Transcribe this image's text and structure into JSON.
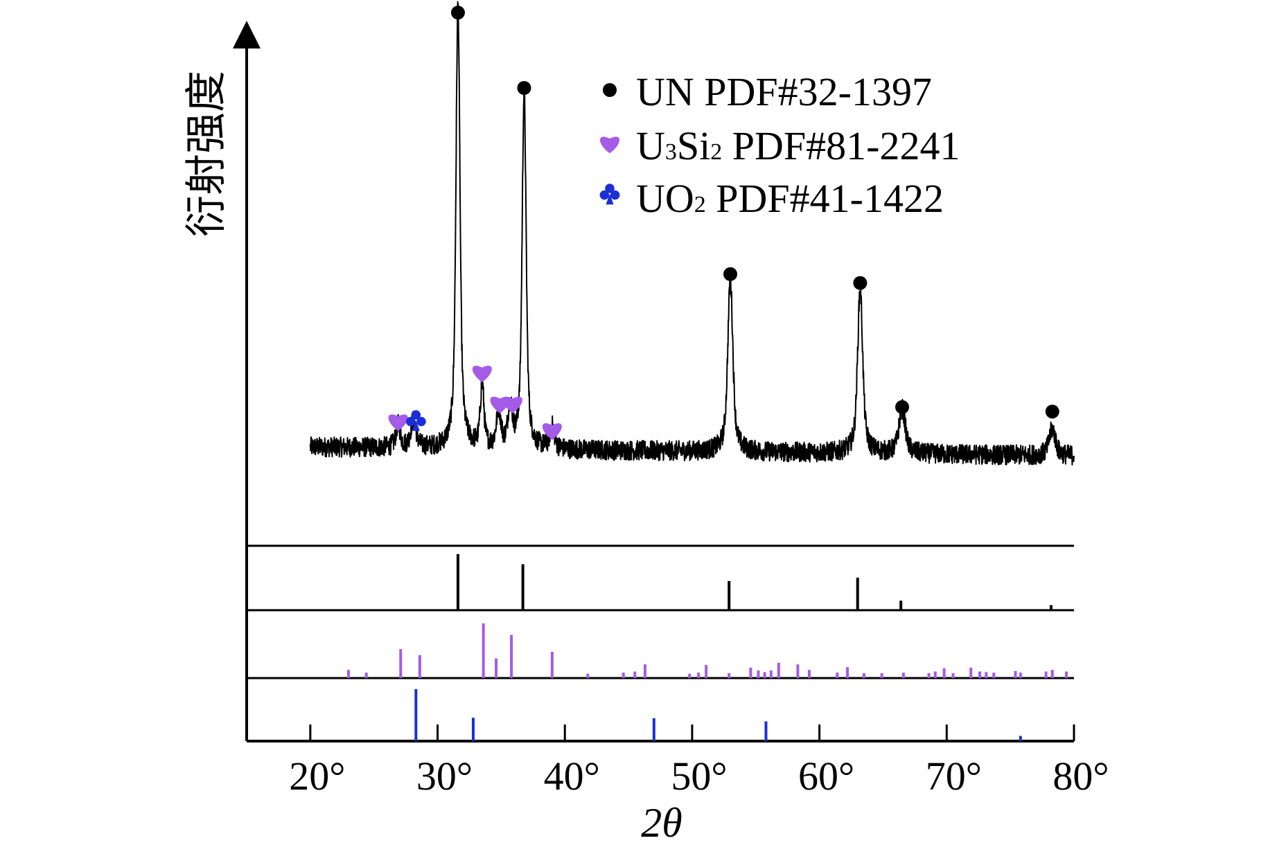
{
  "chart_data": {
    "type": "line",
    "xlabel": "2θ",
    "ylabel": "衍射强度",
    "xlim": [
      15,
      80
    ],
    "x_ticks": [
      20,
      30,
      40,
      50,
      60,
      70,
      80
    ],
    "x_tick_labels": [
      "20°",
      "30°",
      "40°",
      "50°",
      "60°",
      "70°",
      "80°"
    ],
    "grid": false,
    "legend_position": "top-right",
    "colors": {
      "pattern": "#000000",
      "UN": "#000000",
      "U3Si2": "#a45be8",
      "UO2": "#1a2fd6",
      "axis": "#000000"
    },
    "legend": [
      {
        "marker": "circle",
        "label_parts": [
          "UN PDF#32-1397"
        ],
        "color": "#000000"
      },
      {
        "marker": "heart",
        "label_parts": [
          "U",
          "3",
          "Si",
          "2",
          " PDF#81-2241"
        ],
        "color": "#a45be8"
      },
      {
        "marker": "club",
        "label_parts": [
          "UO",
          "2",
          " PDF#41-1422"
        ],
        "color": "#1a2fd6"
      }
    ],
    "measured_pattern": {
      "x_range": [
        20,
        80
      ],
      "baseline": 0.12,
      "noise": 0.045,
      "peaks": [
        {
          "x": 26.9,
          "h": 0.05,
          "w": 0.25
        },
        {
          "x": 28.1,
          "h": 0.06,
          "w": 0.3
        },
        {
          "x": 31.6,
          "h": 1.0,
          "w": 0.22
        },
        {
          "x": 33.5,
          "h": 0.14,
          "w": 0.2
        },
        {
          "x": 34.8,
          "h": 0.08,
          "w": 0.25
        },
        {
          "x": 35.7,
          "h": 0.09,
          "w": 0.25
        },
        {
          "x": 36.8,
          "h": 0.8,
          "w": 0.22
        },
        {
          "x": 39.0,
          "h": 0.05,
          "w": 0.25
        },
        {
          "x": 53.0,
          "h": 0.39,
          "w": 0.28
        },
        {
          "x": 63.2,
          "h": 0.37,
          "w": 0.28
        },
        {
          "x": 66.5,
          "h": 0.1,
          "w": 0.35
        },
        {
          "x": 78.3,
          "h": 0.06,
          "w": 0.35
        }
      ]
    },
    "peak_markers": [
      {
        "phase": "UN",
        "marker": "circle",
        "x": 31.6,
        "y": 1.12
      },
      {
        "phase": "UN",
        "marker": "circle",
        "x": 36.8,
        "y": 0.95
      },
      {
        "phase": "UN",
        "marker": "circle",
        "x": 53.0,
        "y": 0.53
      },
      {
        "phase": "UN",
        "marker": "circle",
        "x": 63.2,
        "y": 0.51
      },
      {
        "phase": "UN",
        "marker": "circle",
        "x": 66.5,
        "y": 0.23
      },
      {
        "phase": "UN",
        "marker": "circle",
        "x": 78.3,
        "y": 0.22
      },
      {
        "phase": "U3Si2",
        "marker": "heart",
        "x": 26.9,
        "y": 0.2
      },
      {
        "phase": "U3Si2",
        "marker": "heart",
        "x": 33.5,
        "y": 0.31
      },
      {
        "phase": "U3Si2",
        "marker": "heart",
        "x": 34.9,
        "y": 0.24
      },
      {
        "phase": "U3Si2",
        "marker": "heart",
        "x": 35.9,
        "y": 0.24
      },
      {
        "phase": "U3Si2",
        "marker": "heart",
        "x": 39.0,
        "y": 0.18
      },
      {
        "phase": "UO2",
        "marker": "club",
        "x": 28.3,
        "y": 0.2
      }
    ],
    "reference_patterns": [
      {
        "name": "UN PDF#32-1397",
        "color": "#000000",
        "sticks": [
          {
            "x": 31.6,
            "i": 1.0
          },
          {
            "x": 36.7,
            "i": 0.82
          },
          {
            "x": 52.9,
            "i": 0.52
          },
          {
            "x": 63.0,
            "i": 0.58
          },
          {
            "x": 66.4,
            "i": 0.17
          },
          {
            "x": 78.2,
            "i": 0.09
          }
        ]
      },
      {
        "name": "U3Si2 PDF#81-2241",
        "color": "#a45be8",
        "sticks": [
          {
            "x": 23.0,
            "i": 0.15
          },
          {
            "x": 24.4,
            "i": 0.1
          },
          {
            "x": 27.1,
            "i": 0.53
          },
          {
            "x": 28.6,
            "i": 0.42
          },
          {
            "x": 33.6,
            "i": 1.0
          },
          {
            "x": 34.6,
            "i": 0.36
          },
          {
            "x": 35.8,
            "i": 0.79
          },
          {
            "x": 39.0,
            "i": 0.48
          },
          {
            "x": 41.8,
            "i": 0.08
          },
          {
            "x": 44.6,
            "i": 0.1
          },
          {
            "x": 45.5,
            "i": 0.12
          },
          {
            "x": 46.3,
            "i": 0.25
          },
          {
            "x": 49.8,
            "i": 0.08
          },
          {
            "x": 50.5,
            "i": 0.1
          },
          {
            "x": 51.1,
            "i": 0.24
          },
          {
            "x": 52.9,
            "i": 0.09
          },
          {
            "x": 54.6,
            "i": 0.19
          },
          {
            "x": 55.2,
            "i": 0.14
          },
          {
            "x": 55.7,
            "i": 0.11
          },
          {
            "x": 56.2,
            "i": 0.14
          },
          {
            "x": 56.8,
            "i": 0.28
          },
          {
            "x": 58.3,
            "i": 0.25
          },
          {
            "x": 59.2,
            "i": 0.15
          },
          {
            "x": 61.4,
            "i": 0.1
          },
          {
            "x": 62.2,
            "i": 0.2
          },
          {
            "x": 63.5,
            "i": 0.09
          },
          {
            "x": 64.9,
            "i": 0.09
          },
          {
            "x": 66.6,
            "i": 0.1
          },
          {
            "x": 68.6,
            "i": 0.09
          },
          {
            "x": 69.1,
            "i": 0.12
          },
          {
            "x": 69.8,
            "i": 0.18
          },
          {
            "x": 70.5,
            "i": 0.09
          },
          {
            "x": 71.9,
            "i": 0.19
          },
          {
            "x": 72.6,
            "i": 0.12
          },
          {
            "x": 73.1,
            "i": 0.11
          },
          {
            "x": 73.7,
            "i": 0.1
          },
          {
            "x": 75.4,
            "i": 0.13
          },
          {
            "x": 75.8,
            "i": 0.1
          },
          {
            "x": 77.8,
            "i": 0.12
          },
          {
            "x": 78.3,
            "i": 0.15
          },
          {
            "x": 79.4,
            "i": 0.12
          }
        ]
      },
      {
        "name": "UO2 PDF#41-1422",
        "color": "#1a2fd6",
        "sticks": [
          {
            "x": 28.3,
            "i": 1.0
          },
          {
            "x": 32.8,
            "i": 0.45
          },
          {
            "x": 47.0,
            "i": 0.44
          },
          {
            "x": 55.8,
            "i": 0.38
          },
          {
            "x": 75.8,
            "i": 0.1
          }
        ]
      }
    ]
  }
}
